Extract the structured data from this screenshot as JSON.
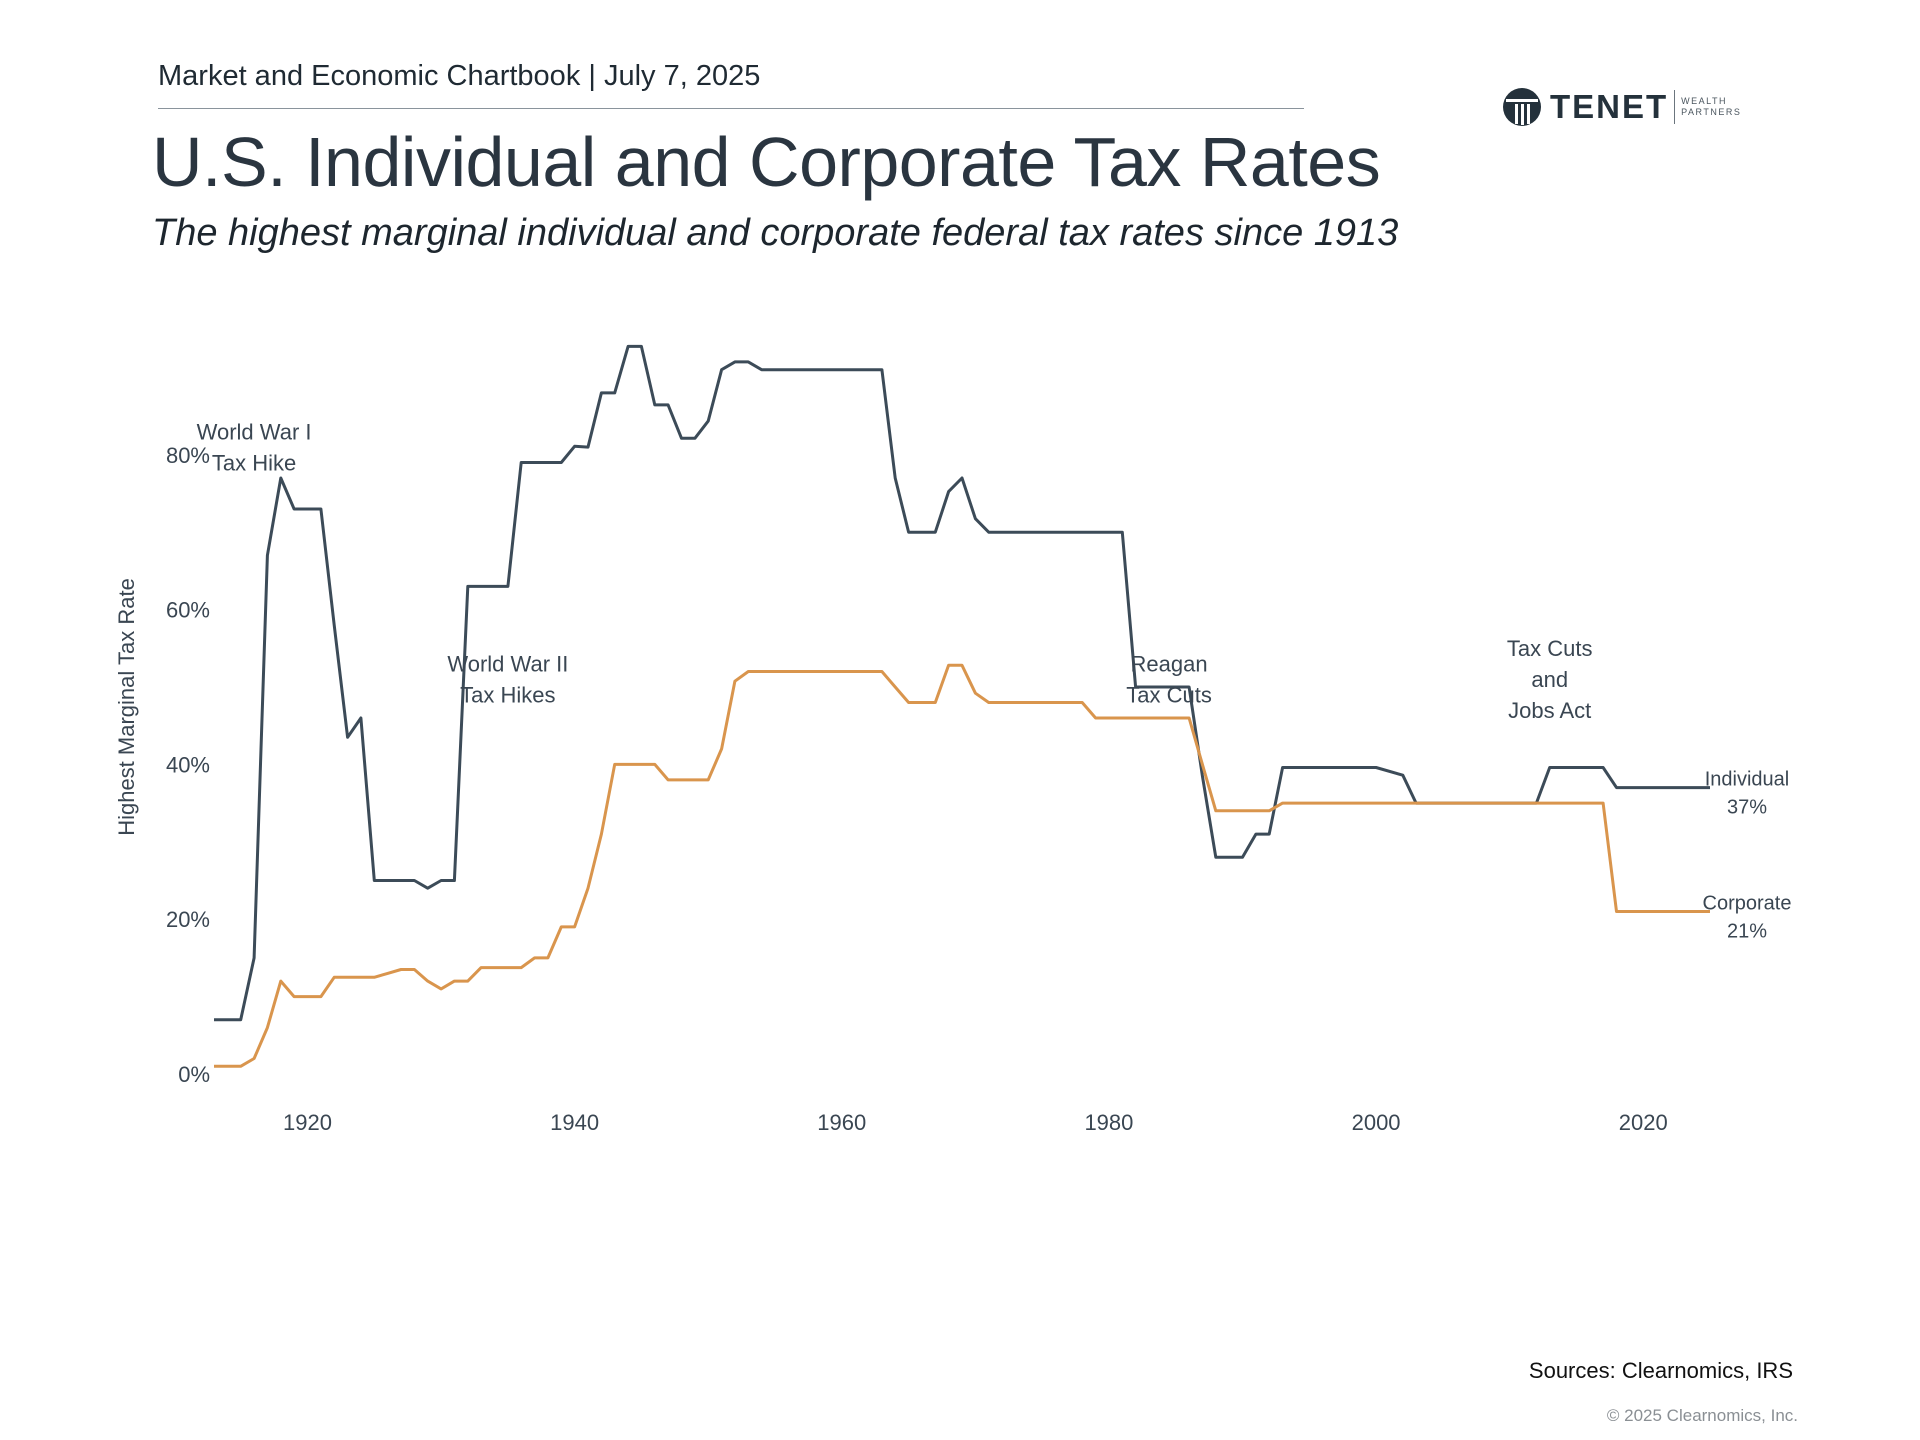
{
  "header": {
    "chartbook": "Market and Economic Chartbook | July 7, 2025",
    "title": "U.S. Individual and Corporate Tax Rates",
    "subtitle": "The highest marginal individual and corporate federal tax rates since 1913"
  },
  "logo": {
    "name": "TENET",
    "sub_line1": "WEALTH",
    "sub_line2": "PARTNERS"
  },
  "footer": {
    "sources": "Sources: Clearnomics, IRS",
    "copyright": "© 2025 Clearnomics, Inc."
  },
  "colors": {
    "individual": "#3c4b58",
    "corporate": "#d9954d",
    "text": "#2b3640"
  },
  "chart_data": {
    "type": "line",
    "title": "U.S. Individual and Corporate Tax Rates",
    "xlabel": "",
    "ylabel": "Highest Marginal Tax Rate",
    "xlim": [
      1913,
      2025
    ],
    "ylim": [
      0,
      100
    ],
    "x_ticks": [
      "1920",
      "1940",
      "1960",
      "1980",
      "2000",
      "2020"
    ],
    "y_ticks": [
      "0%",
      "20%",
      "40%",
      "60%",
      "80%"
    ],
    "series": [
      {
        "name": "Individual",
        "end_label": "37%",
        "points": [
          [
            1913,
            7
          ],
          [
            1915,
            7
          ],
          [
            1916,
            15
          ],
          [
            1917,
            67
          ],
          [
            1918,
            77
          ],
          [
            1919,
            73
          ],
          [
            1920,
            73
          ],
          [
            1921,
            73
          ],
          [
            1922,
            58
          ],
          [
            1923,
            43.5
          ],
          [
            1924,
            46
          ],
          [
            1925,
            25
          ],
          [
            1928,
            25
          ],
          [
            1929,
            24
          ],
          [
            1930,
            25
          ],
          [
            1931,
            25
          ],
          [
            1932,
            63
          ],
          [
            1935,
            63
          ],
          [
            1936,
            79
          ],
          [
            1939,
            79
          ],
          [
            1940,
            81.1
          ],
          [
            1941,
            81
          ],
          [
            1942,
            88
          ],
          [
            1943,
            88
          ],
          [
            1944,
            94
          ],
          [
            1945,
            94
          ],
          [
            1946,
            86.45
          ],
          [
            1947,
            86.45
          ],
          [
            1948,
            82.13
          ],
          [
            1949,
            82.13
          ],
          [
            1950,
            84.36
          ],
          [
            1951,
            91
          ],
          [
            1952,
            92
          ],
          [
            1953,
            92
          ],
          [
            1954,
            91
          ],
          [
            1963,
            91
          ],
          [
            1964,
            77
          ],
          [
            1965,
            70
          ],
          [
            1967,
            70
          ],
          [
            1968,
            75.25
          ],
          [
            1969,
            77
          ],
          [
            1970,
            71.75
          ],
          [
            1971,
            70
          ],
          [
            1981,
            70
          ],
          [
            1982,
            50
          ],
          [
            1986,
            50
          ],
          [
            1987,
            38.5
          ],
          [
            1988,
            28
          ],
          [
            1990,
            28
          ],
          [
            1991,
            31
          ],
          [
            1992,
            31
          ],
          [
            1993,
            39.6
          ],
          [
            2000,
            39.6
          ],
          [
            2002,
            38.6
          ],
          [
            2003,
            35
          ],
          [
            2012,
            35
          ],
          [
            2013,
            39.6
          ],
          [
            2017,
            39.6
          ],
          [
            2018,
            37
          ],
          [
            2025,
            37
          ]
        ]
      },
      {
        "name": "Corporate",
        "end_label": "21%",
        "points": [
          [
            1913,
            1
          ],
          [
            1915,
            1
          ],
          [
            1916,
            2
          ],
          [
            1917,
            6
          ],
          [
            1918,
            12
          ],
          [
            1919,
            10
          ],
          [
            1921,
            10
          ],
          [
            1922,
            12.5
          ],
          [
            1925,
            12.5
          ],
          [
            1926,
            13
          ],
          [
            1927,
            13.5
          ],
          [
            1928,
            13.5
          ],
          [
            1929,
            12
          ],
          [
            1930,
            11
          ],
          [
            1931,
            12
          ],
          [
            1932,
            12
          ],
          [
            1933,
            13.75
          ],
          [
            1936,
            13.75
          ],
          [
            1937,
            15
          ],
          [
            1938,
            15
          ],
          [
            1939,
            19
          ],
          [
            1940,
            19
          ],
          [
            1941,
            24
          ],
          [
            1942,
            31
          ],
          [
            1943,
            40
          ],
          [
            1946,
            40
          ],
          [
            1947,
            38
          ],
          [
            1950,
            38
          ],
          [
            1951,
            42
          ],
          [
            1952,
            50.75
          ],
          [
            1953,
            52
          ],
          [
            1963,
            52
          ],
          [
            1964,
            50
          ],
          [
            1965,
            48
          ],
          [
            1967,
            48
          ],
          [
            1968,
            52.8
          ],
          [
            1969,
            52.8
          ],
          [
            1970,
            49.2
          ],
          [
            1971,
            48
          ],
          [
            1978,
            48
          ],
          [
            1979,
            46
          ],
          [
            1986,
            46
          ],
          [
            1987,
            40
          ],
          [
            1988,
            34
          ],
          [
            1992,
            34
          ],
          [
            1993,
            35
          ],
          [
            2017,
            35
          ],
          [
            2018,
            21
          ],
          [
            2025,
            21
          ]
        ]
      }
    ],
    "annotations": [
      {
        "lines": [
          "World War I",
          "Tax Hike"
        ],
        "x": 1916,
        "y": 82
      },
      {
        "lines": [
          "World War II",
          "Tax Hikes"
        ],
        "x": 1935,
        "y": 52
      },
      {
        "lines": [
          "Reagan",
          "Tax Cuts"
        ],
        "x": 1984.5,
        "y": 52
      },
      {
        "lines": [
          "Tax Cuts",
          "and",
          "Jobs Act"
        ],
        "x": 2013,
        "y": 54
      }
    ]
  }
}
